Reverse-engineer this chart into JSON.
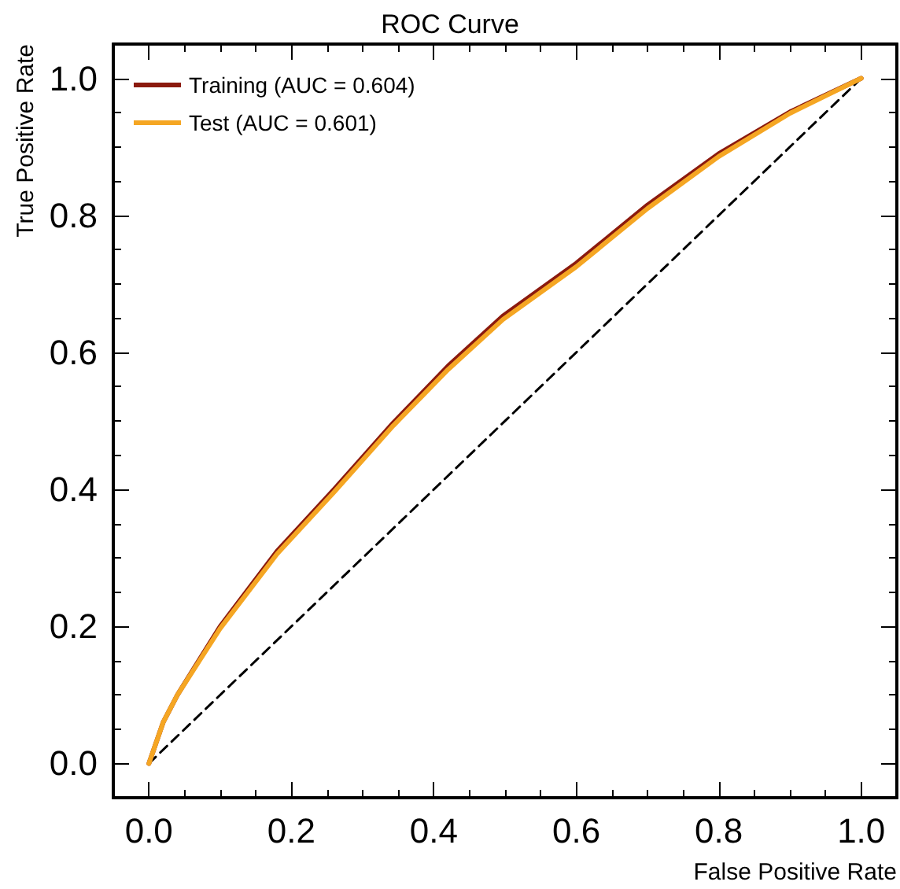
{
  "chart_data": {
    "type": "line",
    "title": "ROC Curve",
    "xlabel": "False Positive Rate",
    "ylabel": "True Positive Rate",
    "xlim": [
      -0.05,
      1.05
    ],
    "ylim": [
      -0.05,
      1.05
    ],
    "xticks": [
      {
        "value": 0,
        "label": "0.0"
      },
      {
        "value": 0.05,
        "label": null
      },
      {
        "value": 0.1,
        "label": null
      },
      {
        "value": 0.15,
        "label": null
      },
      0.2,
      {
        "value": 0.25,
        "label": null
      },
      {
        "value": 0.3,
        "label": null
      },
      {
        "value": 0.35,
        "label": null
      },
      0.4,
      {
        "value": 0.45,
        "label": null
      },
      {
        "value": 0.5,
        "label": null
      },
      {
        "value": 0.55,
        "label": null
      },
      0.6,
      {
        "value": 0.65,
        "label": null
      },
      {
        "value": 0.7,
        "label": null
      },
      {
        "value": 0.75,
        "label": null
      },
      0.8,
      {
        "value": 0.85,
        "label": null
      },
      {
        "value": 0.9,
        "label": null
      },
      {
        "value": 0.95,
        "label": null
      },
      {
        "value": 1,
        "label": "1.0"
      }
    ],
    "yticks": [
      {
        "value": 0,
        "label": "0.0"
      },
      {
        "value": 0.05,
        "label": null
      },
      {
        "value": 0.1,
        "label": null
      },
      {
        "value": 0.15,
        "label": null
      },
      0.2,
      {
        "value": 0.25,
        "label": null
      },
      {
        "value": 0.3,
        "label": null
      },
      {
        "value": 0.35,
        "label": null
      },
      0.4,
      {
        "value": 0.45,
        "label": null
      },
      {
        "value": 0.5,
        "label": null
      },
      {
        "value": 0.55,
        "label": null
      },
      0.6,
      {
        "value": 0.65,
        "label": null
      },
      {
        "value": 0.7,
        "label": null
      },
      {
        "value": 0.75,
        "label": null
      },
      0.8,
      {
        "value": 0.85,
        "label": null
      },
      {
        "value": 0.9,
        "label": null
      },
      {
        "value": 0.95,
        "label": null
      },
      {
        "value": 1,
        "label": "1.0"
      }
    ],
    "grid": false,
    "legend": "top left",
    "marker": "none",
    "series": [
      {
        "name": "Training (AUC = 0.604)",
        "color": "#8b1a0e",
        "x": [
          0,
          0.02,
          0.04,
          0.1,
          0.18,
          0.26,
          0.29,
          0.343,
          0.42,
          0.497,
          0.6,
          0.7,
          0.8,
          0.9,
          1.0
        ],
        "values": [
          0,
          0.06,
          0.1,
          0.2,
          0.31,
          0.4,
          0.435,
          0.497,
          0.58,
          0.653,
          0.73,
          0.815,
          0.89,
          0.951,
          1.0
        ]
      },
      {
        "name": "Test (AUC = 0.601)",
        "color": "#f5a623",
        "x": [
          0,
          0.02,
          0.04,
          0.1,
          0.18,
          0.26,
          0.29,
          0.343,
          0.42,
          0.497,
          0.6,
          0.7,
          0.8,
          0.9,
          1.0
        ],
        "values": [
          0,
          0.06,
          0.1,
          0.197,
          0.306,
          0.396,
          0.431,
          0.493,
          0.575,
          0.648,
          0.725,
          0.81,
          0.886,
          0.949,
          1.0
        ]
      },
      {
        "color": "#000000",
        "line_style": "dashed",
        "x": [
          0,
          1
        ],
        "values": [
          0,
          1
        ]
      }
    ]
  }
}
